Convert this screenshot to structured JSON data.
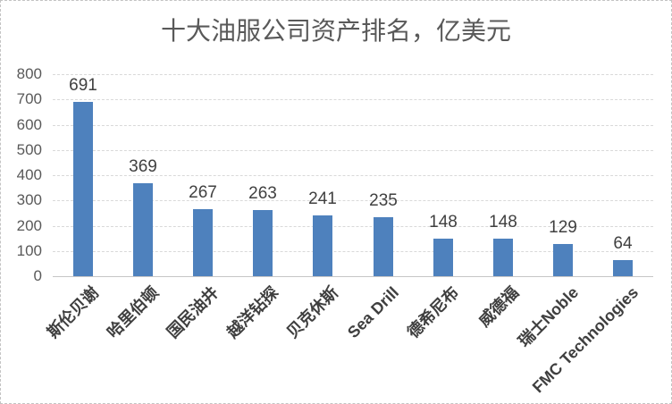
{
  "title": "十大油服公司资产排名，亿美元",
  "colors": {
    "bar": "#4e81bd",
    "gridline": "#d9d9d9",
    "axis_line": "#c6c6c6",
    "tick_text": "#595959",
    "value_text": "#404040",
    "category_text": "#3f3f3f",
    "title_text": "#595959",
    "border": "#c3c3c3"
  },
  "chart_data": {
    "type": "bar",
    "title": "十大油服公司资产排名，亿美元",
    "categories": [
      "斯伦贝谢",
      "哈里伯顿",
      "国民油井",
      "越洋钻探",
      "贝克休斯",
      "Sea Drill",
      "德希尼布",
      "威德福",
      "瑞士Noble",
      "FMC Technologies"
    ],
    "values": [
      691,
      369,
      267,
      263,
      241,
      235,
      148,
      148,
      129,
      64
    ],
    "value_labels": [
      "691",
      "369",
      "267",
      "263",
      "241",
      "235",
      "148",
      "148",
      "129",
      "64"
    ],
    "xlabel": "",
    "ylabel": "",
    "ylim": [
      0,
      800
    ],
    "yticks": [
      0,
      100,
      200,
      300,
      400,
      500,
      600,
      700,
      800
    ],
    "grid": true,
    "gridline_style": "dashed",
    "legend": "none",
    "data_labels": true,
    "category_rotation_deg": 45
  }
}
